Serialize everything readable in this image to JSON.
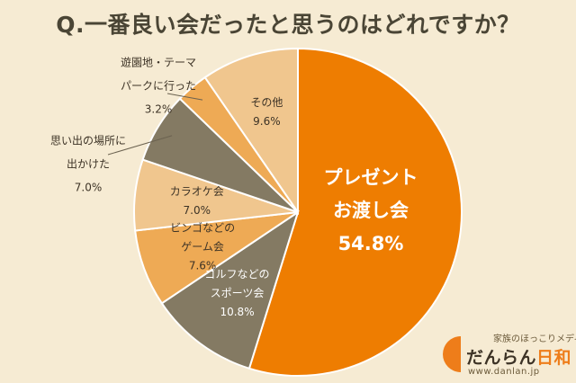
{
  "title": "Q.一番良い会だったと思うのはどれですか？",
  "chart_data": {
    "type": "pie",
    "title": "Q.一番良い会だったと思うのはどれですか？",
    "slices": [
      {
        "label": [
          "プレゼント",
          "お渡し会"
        ],
        "value": 54.8,
        "value_label": "54.8%",
        "color": "#ee7d01"
      },
      {
        "label": [
          "ゴルフなどの",
          "スポーツ会"
        ],
        "value": 10.8,
        "value_label": "10.8%",
        "color": "#847a63"
      },
      {
        "label": [
          "ビンゴなどの",
          "ゲーム会"
        ],
        "value": 7.6,
        "value_label": "7.6%",
        "color": "#eeaa55"
      },
      {
        "label": [
          "カラオケ会"
        ],
        "value": 7.0,
        "value_label": "7.0%",
        "color": "#f0c68e"
      },
      {
        "label": [
          "思い出の場所に",
          "出かけた"
        ],
        "value": 7.0,
        "value_label": "7.0%",
        "color": "#847a63"
      },
      {
        "label": [
          "遊園地・テーマ",
          "パークに行った"
        ],
        "value": 3.2,
        "value_label": "3.2%",
        "color": "#eeaa55"
      },
      {
        "label": [
          "その他"
        ],
        "value": 9.6,
        "value_label": "9.6%",
        "color": "#f0c68e"
      }
    ]
  },
  "logo": {
    "sub": "家族のほっこりメディア",
    "name_main": "だんらん",
    "name_accent": "日和",
    "url": "www.danlan.jp",
    "mark_color": "#ee7d1a"
  }
}
